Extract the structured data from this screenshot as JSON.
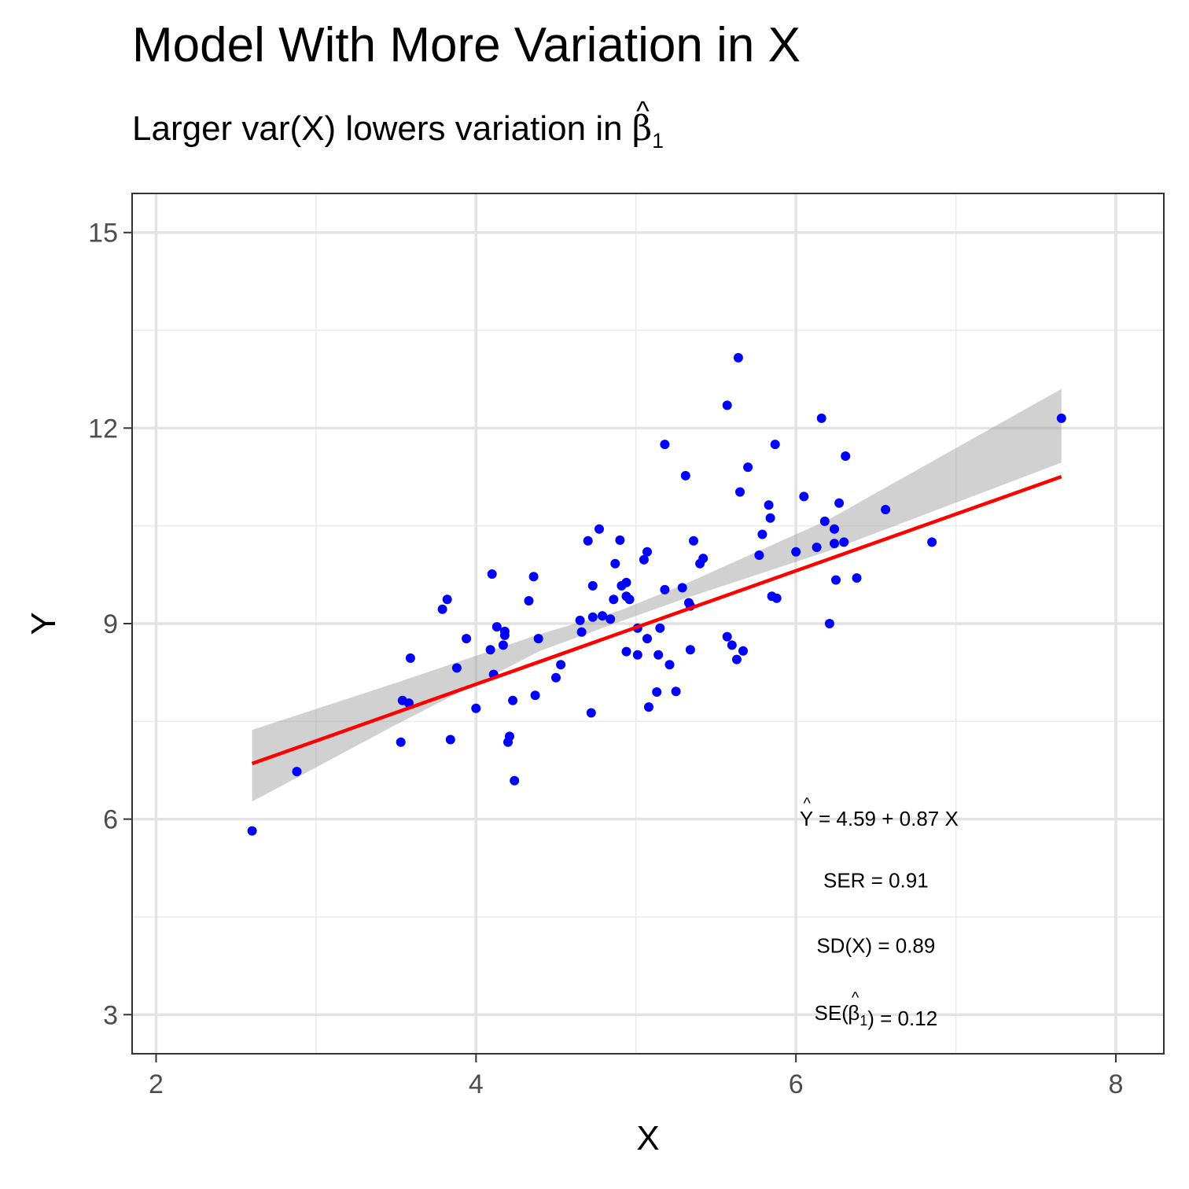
{
  "chart_data": {
    "type": "scatter",
    "title": "Model With More Variation in X",
    "subtitle": {
      "prefix": "Larger var(X) lowers variation in ",
      "symbol": "β",
      "hat": "^",
      "subscript": "1"
    },
    "xlabel": "X",
    "ylabel": "Y",
    "xlim": [
      1.85,
      8.3
    ],
    "ylim": [
      2.4,
      15.6
    ],
    "x_ticks": [
      2,
      4,
      6,
      8
    ],
    "y_ticks": [
      3,
      6,
      9,
      12,
      15
    ],
    "grid": true,
    "point_color": "#0000ff",
    "line_color": "#ff0000",
    "band_color": "#999999",
    "points": [
      [
        2.6,
        5.82
      ],
      [
        2.88,
        6.73
      ],
      [
        3.53,
        7.18
      ],
      [
        3.54,
        7.82
      ],
      [
        3.58,
        7.78
      ],
      [
        3.59,
        8.47
      ],
      [
        3.79,
        9.22
      ],
      [
        3.82,
        9.37
      ],
      [
        3.84,
        7.22
      ],
      [
        3.88,
        8.32
      ],
      [
        3.94,
        8.77
      ],
      [
        4.0,
        7.7
      ],
      [
        4.09,
        8.6
      ],
      [
        4.1,
        9.76
      ],
      [
        4.11,
        8.22
      ],
      [
        4.13,
        8.95
      ],
      [
        4.17,
        8.67
      ],
      [
        4.18,
        8.88
      ],
      [
        4.18,
        8.82
      ],
      [
        4.2,
        7.18
      ],
      [
        4.21,
        7.27
      ],
      [
        4.23,
        7.82
      ],
      [
        4.24,
        6.59
      ],
      [
        4.33,
        9.35
      ],
      [
        4.36,
        9.72
      ],
      [
        4.37,
        7.9
      ],
      [
        4.39,
        8.77
      ],
      [
        4.5,
        8.17
      ],
      [
        4.53,
        8.37
      ],
      [
        4.65,
        9.05
      ],
      [
        4.66,
        8.87
      ],
      [
        4.7,
        10.27
      ],
      [
        4.72,
        7.63
      ],
      [
        4.73,
        9.58
      ],
      [
        4.73,
        9.1
      ],
      [
        4.77,
        10.45
      ],
      [
        4.79,
        9.12
      ],
      [
        4.84,
        9.07
      ],
      [
        4.86,
        9.37
      ],
      [
        4.87,
        9.92
      ],
      [
        4.9,
        10.28
      ],
      [
        4.91,
        9.58
      ],
      [
        4.94,
        9.42
      ],
      [
        4.94,
        9.63
      ],
      [
        4.94,
        8.57
      ],
      [
        4.96,
        9.37
      ],
      [
        5.01,
        8.52
      ],
      [
        5.01,
        8.93
      ],
      [
        5.05,
        9.98
      ],
      [
        5.07,
        10.1
      ],
      [
        5.07,
        8.77
      ],
      [
        5.08,
        7.72
      ],
      [
        5.13,
        7.95
      ],
      [
        5.14,
        8.52
      ],
      [
        5.15,
        8.93
      ],
      [
        5.18,
        11.75
      ],
      [
        5.18,
        9.52
      ],
      [
        5.21,
        8.37
      ],
      [
        5.25,
        7.96
      ],
      [
        5.29,
        9.55
      ],
      [
        5.31,
        11.27
      ],
      [
        5.33,
        9.32
      ],
      [
        5.34,
        9.27
      ],
      [
        5.34,
        8.6
      ],
      [
        5.36,
        10.27
      ],
      [
        5.4,
        9.92
      ],
      [
        5.42,
        10.0
      ],
      [
        5.57,
        12.35
      ],
      [
        5.57,
        8.8
      ],
      [
        5.6,
        8.67
      ],
      [
        5.63,
        8.45
      ],
      [
        5.64,
        13.08
      ],
      [
        5.65,
        11.02
      ],
      [
        5.67,
        8.58
      ],
      [
        5.7,
        11.4
      ],
      [
        5.77,
        10.05
      ],
      [
        5.79,
        10.37
      ],
      [
        5.83,
        10.82
      ],
      [
        5.84,
        10.62
      ],
      [
        5.85,
        9.42
      ],
      [
        5.87,
        11.75
      ],
      [
        5.88,
        9.39
      ],
      [
        6.0,
        10.1
      ],
      [
        6.05,
        10.95
      ],
      [
        6.13,
        10.17
      ],
      [
        6.16,
        12.15
      ],
      [
        6.18,
        10.57
      ],
      [
        6.21,
        9.0
      ],
      [
        6.24,
        10.45
      ],
      [
        6.24,
        10.23
      ],
      [
        6.25,
        9.67
      ],
      [
        6.27,
        10.85
      ],
      [
        6.3,
        10.25
      ],
      [
        6.31,
        11.57
      ],
      [
        6.38,
        9.7
      ],
      [
        6.56,
        10.75
      ],
      [
        6.85,
        10.25
      ],
      [
        7.66,
        12.15
      ]
    ],
    "fit": {
      "intercept": 4.59,
      "slope": 0.87,
      "x_range": [
        2.6,
        7.66
      ]
    },
    "band": {
      "x": [
        2.6,
        3.5,
        4.4,
        4.9,
        5.3,
        6.2,
        7.66
      ],
      "lower": [
        6.27,
        7.45,
        8.58,
        9.03,
        9.38,
        10.11,
        11.47
      ],
      "upper": [
        7.37,
        8.09,
        8.84,
        9.2,
        9.6,
        10.59,
        12.6
      ]
    },
    "annotations": [
      {
        "parts": [
          {
            "text": "Y",
            "hat": "^"
          },
          {
            "text": " = 4.59 + 0.87 X"
          }
        ],
        "x": 6.5,
        "y": 5.9
      },
      {
        "parts": [
          {
            "text": "SER = 0.91"
          }
        ],
        "x": 6.5,
        "y": 4.95
      },
      {
        "parts": [
          {
            "text": "SD(X) = 0.89"
          }
        ],
        "x": 6.5,
        "y": 3.95
      },
      {
        "parts": [
          {
            "text": "SE("
          },
          {
            "text": "β",
            "hat": "^",
            "subscript": "1"
          },
          {
            "text": ") = 0.12"
          }
        ],
        "x": 6.5,
        "y": 2.92
      }
    ]
  }
}
